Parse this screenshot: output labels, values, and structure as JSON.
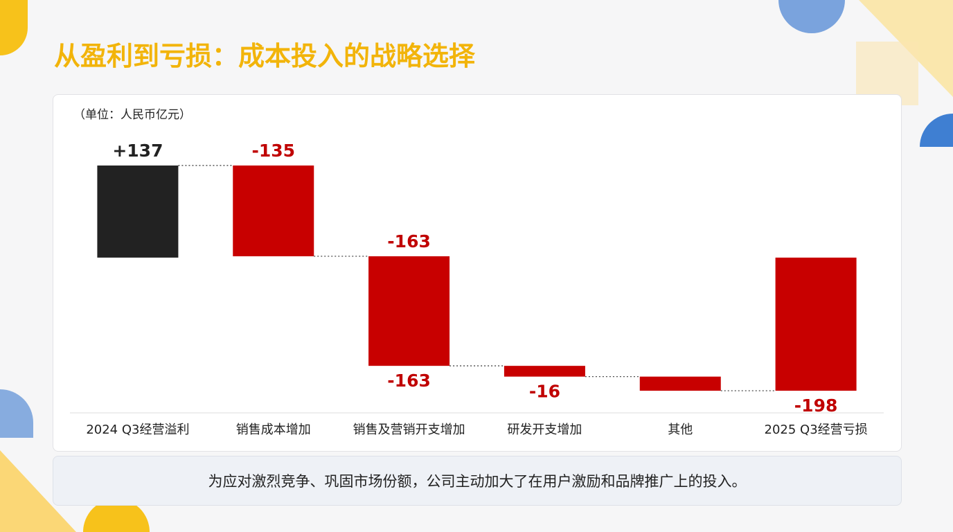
{
  "title": "从盈利到亏损：成本投入的战略选择",
  "chart_data": {
    "type": "waterfall",
    "subtitle": "（单位：人民币亿元）",
    "categories": [
      "2024 Q3经营溢利",
      "销售成本增加",
      "销售及营销开支增加",
      "研发开支增加",
      "其他",
      "2025 Q3经营亏损"
    ],
    "values": [
      137,
      -135,
      -163,
      -16,
      -21,
      -198
    ],
    "value_labels": [
      "+137",
      "-135",
      "-163",
      "-16",
      null,
      "-198"
    ],
    "measures": [
      "absolute",
      "relative",
      "relative",
      "relative",
      "relative",
      "total"
    ],
    "colors": {
      "absolute": "#222222",
      "relative": "#c80000",
      "total": "#c80000"
    },
    "ylim": [
      -200,
      140
    ]
  },
  "footnote": "为应对激烈竞争、巩固市场份额，公司主动加大了在用户激励和品牌推广上的投入。"
}
